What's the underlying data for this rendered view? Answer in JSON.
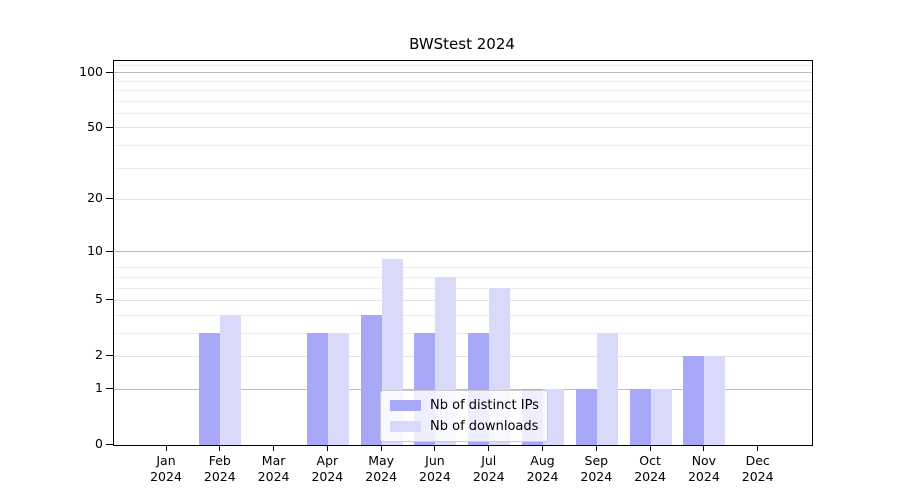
{
  "chart_data": {
    "type": "bar",
    "title": "BWStest 2024",
    "categories": [
      "Jan 2024",
      "Feb 2024",
      "Mar 2024",
      "Apr 2024",
      "May 2024",
      "Jun 2024",
      "Jul 2024",
      "Aug 2024",
      "Sep 2024",
      "Oct 2024",
      "Nov 2024",
      "Dec 2024"
    ],
    "series": [
      {
        "name": "Nb of distinct IPs",
        "color": "#a8a8f8",
        "values": [
          0,
          3,
          0,
          3,
          4,
          3,
          3,
          1,
          1,
          1,
          2,
          0
        ]
      },
      {
        "name": "Nb of downloads",
        "color": "#d9d9fa",
        "values": [
          0,
          4,
          0,
          3,
          9,
          7,
          6,
          1,
          3,
          1,
          2,
          0
        ]
      }
    ],
    "xlabel": "",
    "ylabel": "",
    "yscale": "log1p",
    "ylim": [
      0,
      115
    ],
    "y_major_ticks": [
      0,
      1,
      2,
      5,
      10,
      20,
      50,
      100
    ],
    "y_power_gridlines": [
      1,
      10,
      100
    ],
    "y_minor_gridlines": [
      3,
      4,
      6,
      7,
      8,
      30,
      40,
      60,
      70,
      80,
      90,
      110
    ],
    "grid": true,
    "legend_position": "lower-center-inside"
  }
}
